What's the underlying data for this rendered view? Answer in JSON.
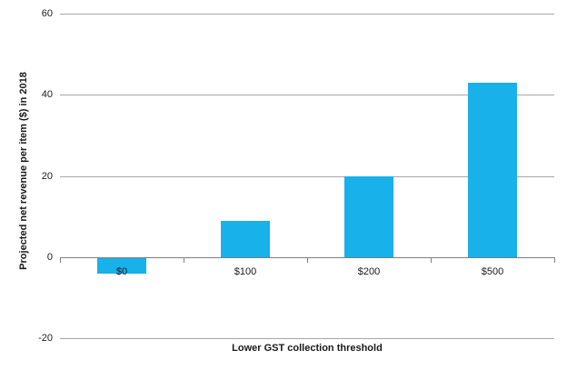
{
  "chart_data": {
    "type": "bar",
    "title": "",
    "xlabel": "Lower GST collection threshold",
    "ylabel": "Projected net revenue per item ($) in 2018",
    "categories": [
      "$0",
      "$100",
      "$200",
      "$500"
    ],
    "values": [
      -4,
      9,
      20,
      43
    ],
    "yticks": [
      60,
      40,
      20,
      0,
      -20
    ],
    "ylim": [
      -20,
      60
    ],
    "grid": true,
    "legend_position": "none",
    "bar_color": "#18B1E9",
    "gridline_color": "#A6A6A6",
    "axis_color": "#7F7F7F",
    "text_color": "#1a1a1a",
    "background_color": "#ffffff"
  }
}
